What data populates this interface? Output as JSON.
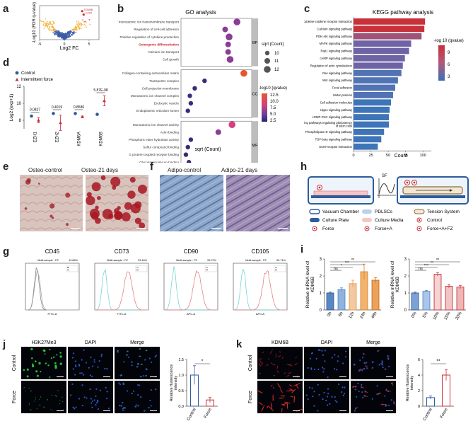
{
  "panels": {
    "a": "a",
    "b": "b",
    "c": "c",
    "d": "d",
    "e": "e",
    "f": "f",
    "g": "g",
    "h": "h",
    "i": "i",
    "j": "j",
    "k": "k"
  },
  "chart_data": [
    {
      "id": "a",
      "type": "scatter",
      "title": "",
      "xlabel": "Log2 FC",
      "ylabel": "-Log10 (FDR q-value)",
      "xlim": [
        -5,
        7
      ],
      "ylim": [
        0,
        8
      ],
      "xticks": [
        "-5",
        "0",
        "5"
      ],
      "annotations": [
        "KDM6B",
        "EZH2"
      ],
      "series": [
        {
          "name": "highlighted",
          "points": [
            [
              3.6,
              6.7
            ],
            [
              3.9,
              5.9
            ]
          ]
        }
      ]
    },
    {
      "id": "b",
      "type": "scatter",
      "title": "GO analysis",
      "xlabel": "sqrt (Count)",
      "xticks": [
        "100",
        "120",
        "140"
      ],
      "xlim": [
        88,
        160
      ],
      "highlight": "Osteogenic differentiation",
      "size_legend_title": "sqrt (Count)",
      "size_legend": [
        "10",
        "11",
        "12"
      ],
      "color_legend_title": "-log10 (qvalue)",
      "color_legend": [
        "12.5",
        "10.0",
        "7.5",
        "5.0",
        "2.5"
      ],
      "groups": [
        {
          "name": "BP",
          "terms": [
            "Regulation of monoatomic ion transmembrane transport",
            "Regulation of cell-cell adhesion",
            "Positive regulation of cytokine production",
            "Osteogenic differentiation",
            "Calcium ion transport",
            "Cell growth"
          ],
          "x": [
            145,
            133,
            137,
            136,
            136,
            138
          ],
          "count": [
            12,
            11,
            12,
            11,
            11,
            12
          ],
          "q": [
            6,
            5,
            5,
            5,
            5,
            5
          ]
        },
        {
          "name": "CC",
          "terms": [
            "Collagen-containing extracellular matrix",
            "Transporter complex",
            "Cell projection membrane",
            "Monoatomic ion channel complex",
            "Endocytic vesicle",
            "Endoplasmic reticulum lumen"
          ],
          "x": [
            152,
            112,
            102,
            97,
            98,
            95
          ],
          "count": [
            12,
            10,
            10,
            10,
            10,
            10
          ],
          "q": [
            12,
            4,
            3,
            3,
            3,
            3
          ]
        },
        {
          "name": "MF",
          "terms": [
            "Monoatomic ion channel activity",
            "Actin binding",
            "Phosphoric ester hydrolase activity",
            "Sulfur compound binding",
            "G protein-coupled receptor binding",
            "Glycosaminoglycan binding"
          ],
          "x": [
            140,
            126,
            98,
            95,
            93,
            96
          ],
          "count": [
            12,
            11,
            10,
            10,
            10,
            10
          ],
          "q": [
            8,
            6,
            3,
            3,
            3,
            3
          ]
        }
      ]
    },
    {
      "id": "c",
      "type": "bar",
      "title": "KEGG pathway analysis",
      "xlabel": "Count",
      "xticks": [
        "0",
        "25",
        "50",
        "75",
        "100"
      ],
      "xlim": [
        0,
        112
      ],
      "legend_title": "-log 10 (qvalue)",
      "legend_ticks": [
        "9",
        "6",
        "3"
      ],
      "categories": [
        "Cytokine-cytokine receptor interaction",
        "Calcium signaling pathway",
        "PI3K-Akt signaling pathway",
        "MAPK signaling pathway",
        "Rap1 signaling pathway",
        "cAMP signaling pathway",
        "Regulation of actin cytoskeleton",
        "Ras signaling pathway",
        "Wnt signaling pathway",
        "Focal adhesion",
        "Motor proteins",
        "Cell adhesion molecules",
        "Hippo signaling pathway",
        "cGMP-PKG signaling pathway",
        "Signaling pathways regulating pluripotency of stem cells",
        "Phospholipase D signaling pathway",
        "TGF-beta signaling pathway",
        "ECM-receptor interaction"
      ],
      "values": [
        103,
        102,
        98,
        83,
        80,
        74,
        71,
        69,
        64,
        60,
        57,
        54,
        52,
        51,
        51,
        44,
        40,
        35
      ],
      "qvalue": [
        10,
        9,
        6,
        5,
        5,
        5,
        5,
        4,
        4,
        4,
        4,
        3,
        3,
        3,
        3,
        3,
        3,
        3
      ]
    },
    {
      "id": "d",
      "type": "scatter",
      "title": "",
      "ylabel": "Log2 (exp+1)",
      "ylim": [
        7,
        12
      ],
      "yticks": [
        "8",
        "10",
        "12"
      ],
      "categories": [
        "EZH1",
        "EZH2",
        "KDM6A",
        "KDM6B"
      ],
      "legend": [
        "Control",
        "Intermittent force"
      ],
      "p_values": [
        "0.0827",
        "0.4019",
        "0.8586",
        "5.87E-08"
      ],
      "series": [
        {
          "name": "Control",
          "values": [
            8.5,
            8.8,
            8.8,
            8.7
          ],
          "err": [
            0.1,
            0.1,
            0.1,
            0.1
          ]
        },
        {
          "name": "Intermittent force",
          "values": [
            8.0,
            7.7,
            8.4,
            10.3
          ],
          "err": [
            0.3,
            0.9,
            0.1,
            0.6
          ]
        }
      ]
    },
    {
      "id": "g",
      "type": "area",
      "title": "Flow cytometry",
      "markers": [
        "CD45",
        "CD73",
        "CD90",
        "CD105"
      ],
      "labels": [
        "FITC-A",
        "FITC-A",
        "APC-A",
        "APC-A"
      ],
      "stats": [
        "10.86%",
        "99.16%",
        "99.07%",
        "99.71%"
      ],
      "subtitle": "Multi-sample - P2"
    },
    {
      "id": "i1",
      "type": "bar",
      "title": "",
      "ylabel": "Relative mRNA level of KDM6B",
      "ylim": [
        0,
        3
      ],
      "yticks": [
        "0",
        "1",
        "2",
        "3"
      ],
      "categories": [
        "0h",
        "6h",
        "12h",
        "24h",
        "48h"
      ],
      "values": [
        1.0,
        1.2,
        1.55,
        2.25,
        1.75
      ],
      "err": [
        0.05,
        0.1,
        0.2,
        0.45,
        0.15
      ],
      "significance": [
        "ns",
        "*",
        "***",
        "**"
      ]
    },
    {
      "id": "i2",
      "type": "bar",
      "title": "",
      "ylabel": "Relative mRNA level of KDM6B",
      "ylim": [
        0,
        3
      ],
      "yticks": [
        "0",
        "1",
        "2",
        "3"
      ],
      "categories": [
        "0%",
        "5%",
        "10%",
        "15%",
        "20%"
      ],
      "values": [
        1.0,
        1.1,
        2.1,
        1.4,
        1.35
      ],
      "err": [
        0.05,
        0.05,
        0.1,
        0.1,
        0.1
      ],
      "significance": [
        "ns",
        "***",
        "**",
        "**"
      ]
    },
    {
      "id": "j",
      "type": "bar",
      "title": "",
      "ylabel": "Relative fluorescence intensity",
      "ylim": [
        0,
        1.5
      ],
      "yticks": [
        "0.0",
        "0.5",
        "1.0",
        "1.5"
      ],
      "categories": [
        "Control",
        "Force"
      ],
      "values": [
        1.0,
        0.2
      ],
      "err": [
        0.3,
        0.08
      ],
      "significance": "*"
    },
    {
      "id": "k",
      "type": "bar",
      "title": "",
      "ylabel": "Relative fluorescence intensity",
      "ylim": [
        0,
        6
      ],
      "yticks": [
        "0",
        "2",
        "4",
        "6"
      ],
      "categories": [
        "Control",
        "Force"
      ],
      "values": [
        1.1,
        4.0
      ],
      "err": [
        0.2,
        0.7
      ],
      "significance": "**"
    }
  ],
  "e": {
    "titles": [
      "Osteo-control",
      "Osteo-21 days"
    ]
  },
  "f": {
    "titles": [
      "Adipo-control",
      "Adipo-21 days"
    ]
  },
  "h": {
    "sf_label": "SF",
    "legend": [
      {
        "key": "vacuum",
        "label": "Vacuum Chamber"
      },
      {
        "key": "culture_plate",
        "label": "Culture Plate"
      },
      {
        "key": "force",
        "label": "Force"
      },
      {
        "key": "pdlscs",
        "label": "PDLSCs"
      },
      {
        "key": "culture_media",
        "label": "Culture Media"
      },
      {
        "key": "force_a",
        "label": "Force+A"
      },
      {
        "key": "tension",
        "label": "Tension System"
      },
      {
        "key": "control",
        "label": "Control"
      },
      {
        "key": "force_a_fz",
        "label": "Force+A+FZ"
      }
    ]
  },
  "j": {
    "columns": [
      "H3K27Me3",
      "DAPI",
      "Merge"
    ],
    "rows": [
      "Control",
      "Force"
    ]
  },
  "k": {
    "columns": [
      "KDM6B",
      "DAPI",
      "Merge"
    ],
    "rows": [
      "Control",
      "Force"
    ]
  },
  "colors": {
    "red": "#c8303a",
    "blue": "#2e5b9c",
    "green": "#2fcf3c",
    "dapi": "#2d5fd6",
    "kdm": "#e02a2a"
  }
}
